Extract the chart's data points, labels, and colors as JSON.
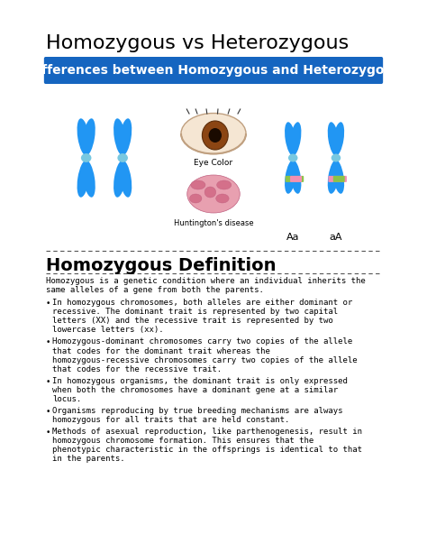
{
  "title": "Homozygous vs Heterozygous",
  "title_fontsize": 16,
  "title_font": "DejaVu Sans",
  "banner_text": "Differences between Homozygous and Heterozygous",
  "banner_bg": "#1565C0",
  "banner_text_color": "#ffffff",
  "banner_fontsize": 10,
  "section_heading": "Homozygous Definition",
  "section_heading_fontsize": 14,
  "intro_text": "Homozygous is a genetic condition where an individual inherits the same alleles of a gene from both the parents.",
  "bullet_points": [
    "In homozygous chromosomes, both alleles are either dominant or recessive. The dominant trait is represented by two capital letters (XX) and the recessive trait is represented by two lowercase letters (xx).",
    "Homozygous-dominant chromosomes carry two copies of the allele that codes for the dominant trait whereas the homozygous-recessive chromosomes carry two copies of the allele that codes for the recessive trait.",
    "In homozygous organisms, the dominant trait is only expressed when both the chromosomes have a dominant gene at a similar locus.",
    "Organisms reproducing by true breeding mechanisms are always homozygous for all traits that are held constant.",
    "Methods of asexual reproduction, like parthenogenesis, result in homozygous chromosome formation. This ensures that the phenotypic characteristic in the offsprings is identical to that in the parents."
  ],
  "link_word": "chromosomes",
  "link_color": "#1a0dab",
  "bg_color": "#ffffff",
  "text_color": "#000000",
  "body_fontsize": 6.5,
  "dashed_line_color": "#555555",
  "label_Aa": "Aa",
  "label_aA": "aA",
  "eye_label": "Eye Color",
  "huntington_label": "Huntington's disease",
  "chrom_color": "#2196F3",
  "chrom_dark": "#1565C0",
  "green_band": "#8BC34A",
  "pink_band": "#F48FB1",
  "centromere_color": "#78C8E0"
}
